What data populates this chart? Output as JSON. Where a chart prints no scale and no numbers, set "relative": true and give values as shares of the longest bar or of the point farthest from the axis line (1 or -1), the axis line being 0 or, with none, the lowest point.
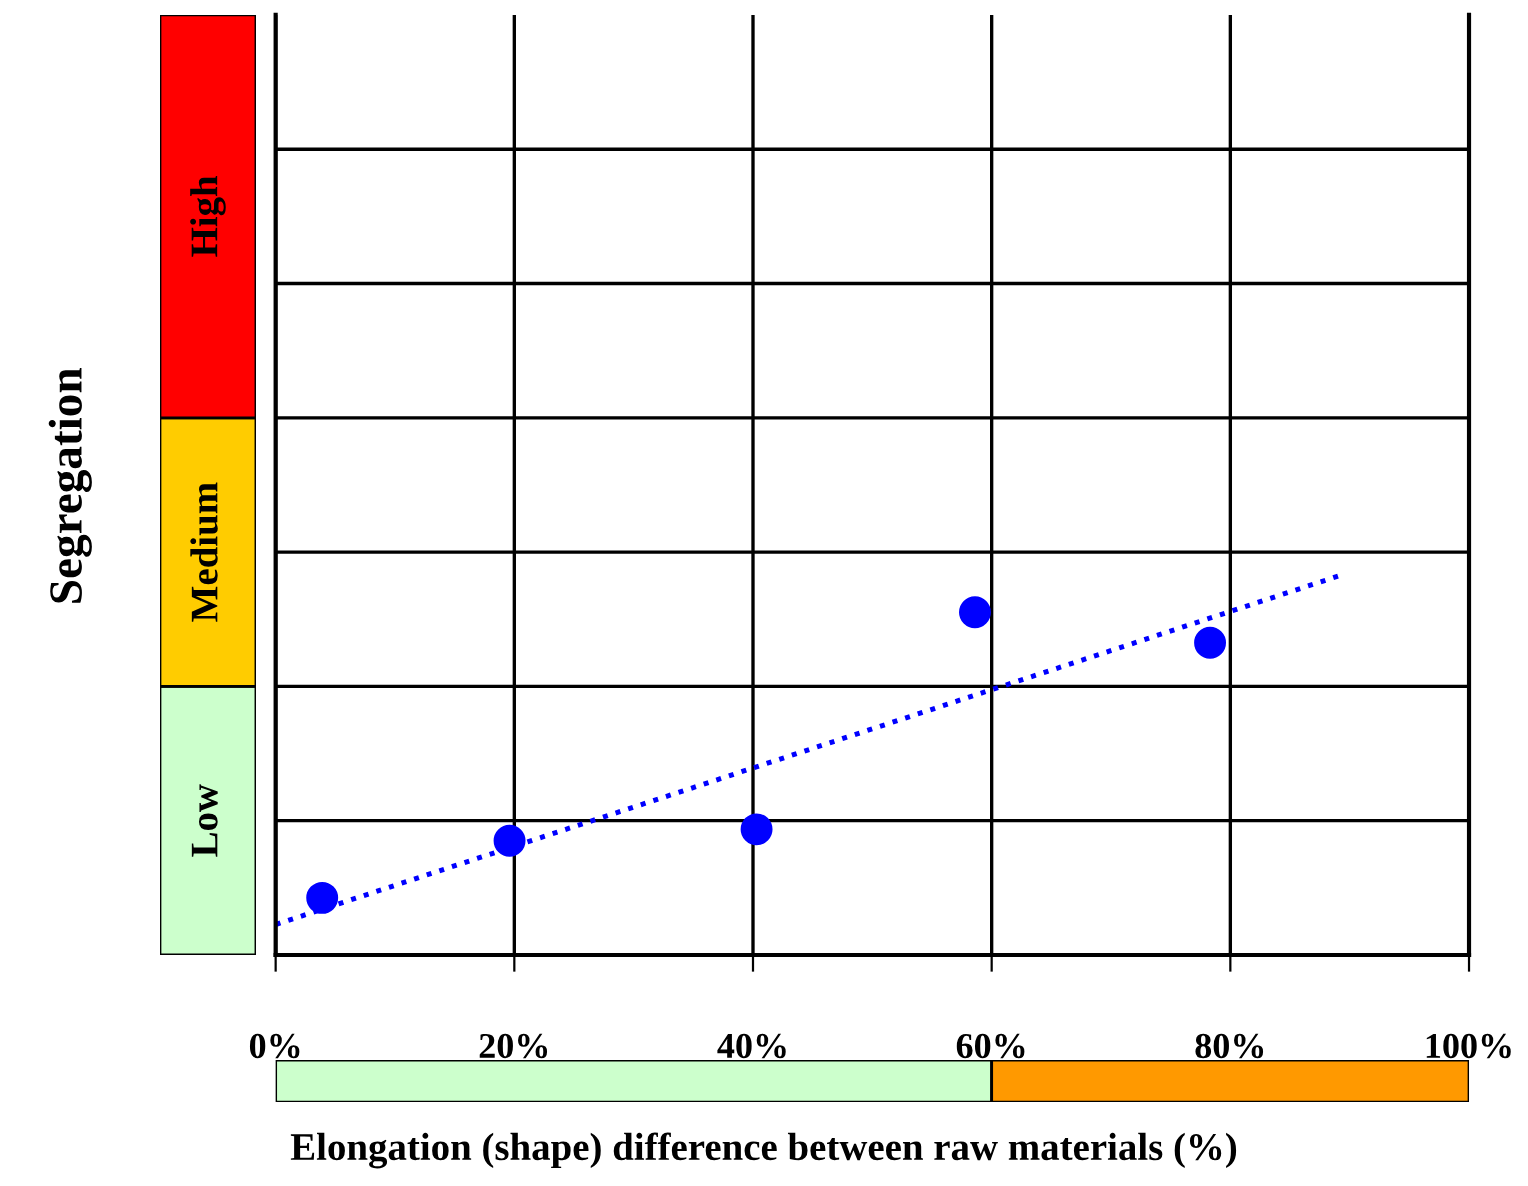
{
  "chart_data": {
    "type": "scatter",
    "xlabel": "Elongation (shape) difference between raw materials (%)",
    "ylabel": "Segregation",
    "relative": true,
    "xlim": [
      0,
      100
    ],
    "xticks": [
      {
        "value": 0,
        "label": "0%"
      },
      {
        "value": 20,
        "label": "20%"
      },
      {
        "value": 40,
        "label": "40%"
      },
      {
        "value": 60,
        "label": "60%"
      },
      {
        "value": 80,
        "label": "80%"
      },
      {
        "value": 100,
        "label": "100%"
      }
    ],
    "grid": true,
    "marker": "circle",
    "series": [
      {
        "color": "#0000ff",
        "x": [
          3.9,
          19.6,
          40.3,
          58.6,
          78.3
        ],
        "values": [
          0.15,
          0.3,
          0.33,
          0.9,
          0.82
        ]
      },
      {
        "type": "line",
        "color": "#0000ff",
        "line_style": "dotted",
        "marker": "none",
        "x": [
          0,
          89.5
        ],
        "values": [
          0.08,
          1
        ]
      }
    ],
    "annotations": [
      "Low",
      "Medium",
      "High"
    ]
  }
}
